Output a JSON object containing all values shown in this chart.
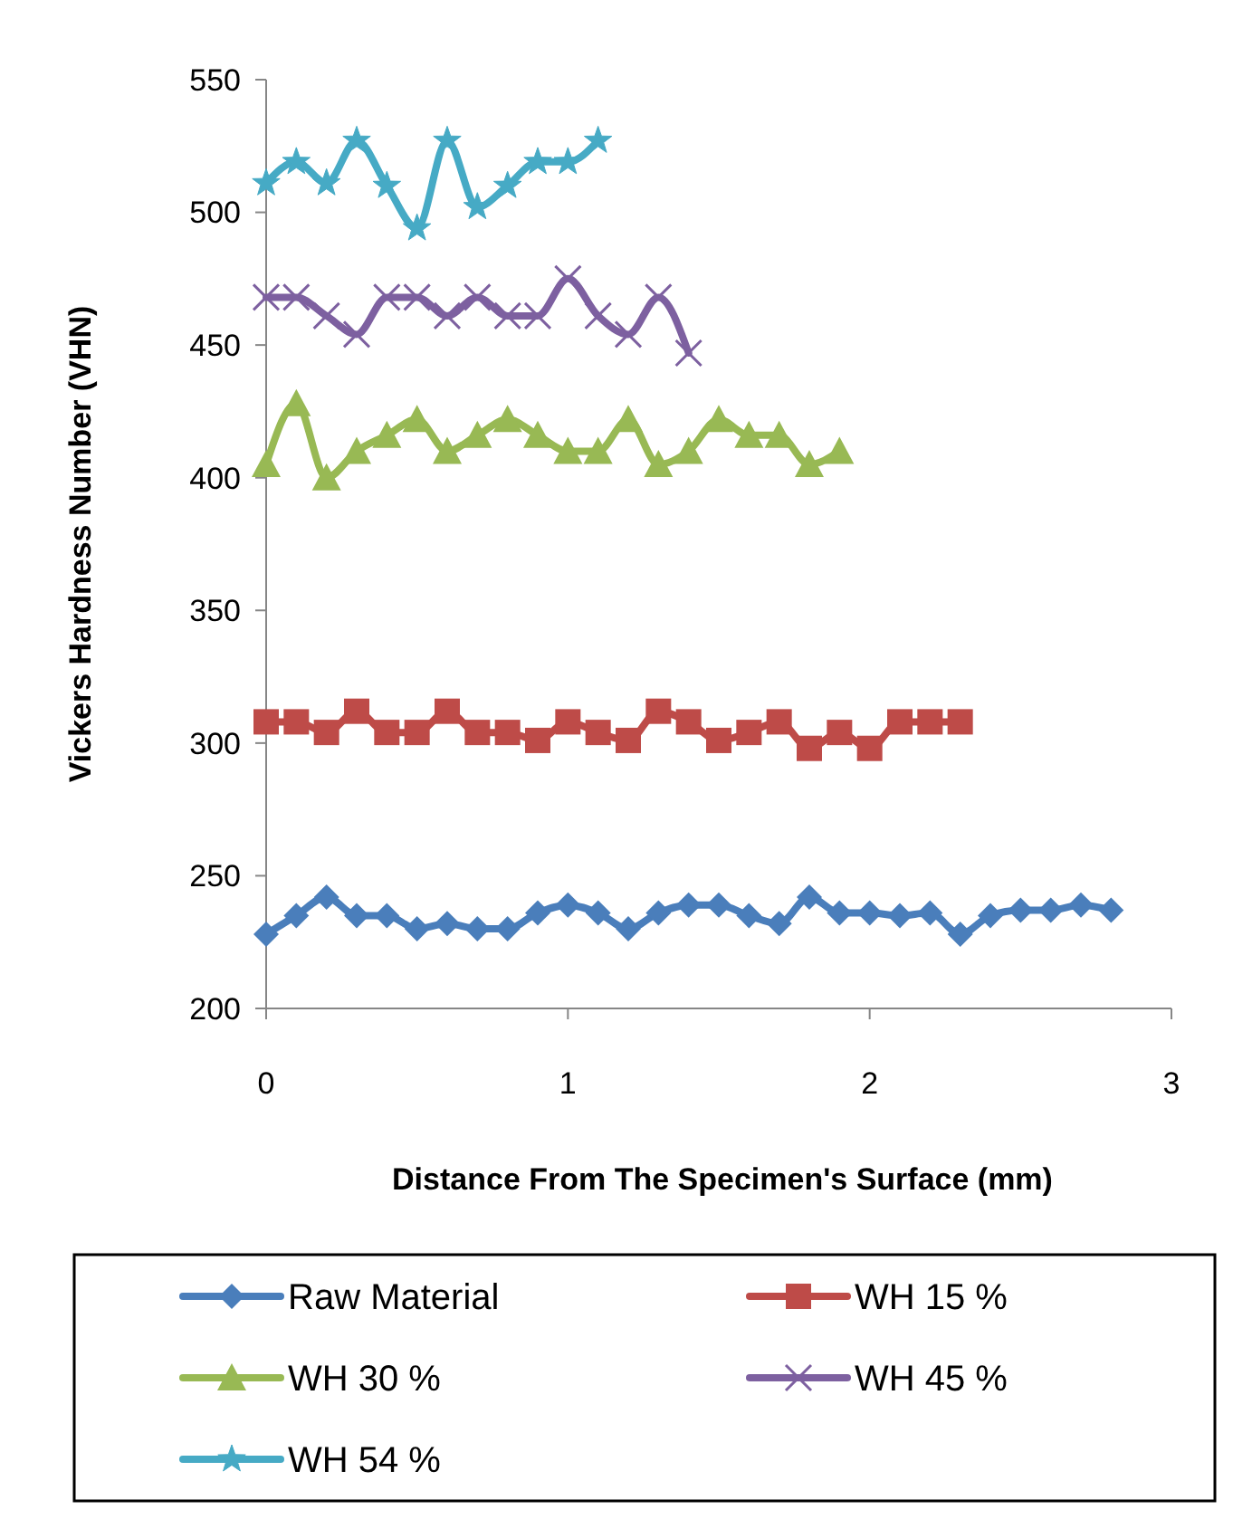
{
  "chart_data": {
    "type": "line",
    "xlabel": "Distance From The Specimen's  Surface (mm)",
    "ylabel": "Vickers Hardness Number (VHN)",
    "xlim": [
      0,
      3
    ],
    "xticks": [
      0,
      1,
      2,
      3
    ],
    "ylim": [
      200,
      550
    ],
    "yticks": [
      200,
      250,
      300,
      350,
      400,
      450,
      500,
      550
    ],
    "grid": false,
    "legend": "bottom",
    "series": [
      {
        "name": "Raw Material",
        "color": "#4a7ebb",
        "marker": "diamond",
        "x": [
          0,
          0.1,
          0.2,
          0.3,
          0.4,
          0.5,
          0.6,
          0.7,
          0.8,
          0.9,
          1,
          1.1,
          1.2,
          1.3,
          1.4,
          1.5,
          1.6,
          1.7,
          1.8,
          1.9,
          2,
          2.1,
          2.2,
          2.3,
          2.4,
          2.5,
          2.6,
          2.7,
          2.8
        ],
        "values": [
          228,
          235,
          242,
          235,
          235,
          230,
          232,
          230,
          230,
          236,
          239,
          236,
          230,
          236,
          239,
          239,
          235,
          232,
          242,
          236,
          236,
          235,
          236,
          228,
          235,
          237,
          237,
          239,
          237
        ]
      },
      {
        "name": "WH 15 %",
        "color": "#be4b48",
        "marker": "square",
        "x": [
          0,
          0.1,
          0.2,
          0.3,
          0.4,
          0.5,
          0.6,
          0.7,
          0.8,
          0.9,
          1,
          1.1,
          1.2,
          1.3,
          1.4,
          1.5,
          1.6,
          1.7,
          1.8,
          1.9,
          2,
          2.1,
          2.2,
          2.3
        ],
        "values": [
          308,
          308,
          304,
          312,
          304,
          304,
          312,
          304,
          304,
          301,
          308,
          304,
          301,
          312,
          308,
          301,
          304,
          308,
          298,
          304,
          298,
          308,
          308,
          308
        ]
      },
      {
        "name": "WH 30 %",
        "color": "#98b954",
        "marker": "triangle",
        "x": [
          0,
          0.1,
          0.2,
          0.3,
          0.4,
          0.5,
          0.6,
          0.7,
          0.8,
          0.9,
          1,
          1.1,
          1.2,
          1.3,
          1.4,
          1.5,
          1.6,
          1.7,
          1.8,
          1.9
        ],
        "values": [
          405,
          428,
          400,
          410,
          416,
          422,
          410,
          416,
          422,
          416,
          410,
          410,
          422,
          405,
          410,
          422,
          416,
          416,
          405,
          410
        ]
      },
      {
        "name": "WH 45 %",
        "color": "#7d60a0",
        "marker": "cross",
        "x": [
          0,
          0.1,
          0.2,
          0.3,
          0.4,
          0.5,
          0.6,
          0.7,
          0.8,
          0.9,
          1,
          1.1,
          1.2,
          1.3,
          1.4
        ],
        "values": [
          468,
          468,
          461,
          454,
          468,
          468,
          461,
          468,
          461,
          461,
          475,
          461,
          454,
          468,
          447
        ]
      },
      {
        "name": "WH 54 %",
        "color": "#46aac5",
        "marker": "star",
        "x": [
          0,
          0.1,
          0.2,
          0.3,
          0.4,
          0.5,
          0.6,
          0.7,
          0.8,
          0.9,
          1,
          1.1
        ],
        "values": [
          511,
          519,
          511,
          527,
          510,
          494,
          527,
          502,
          510,
          519,
          519,
          527
        ]
      }
    ]
  }
}
